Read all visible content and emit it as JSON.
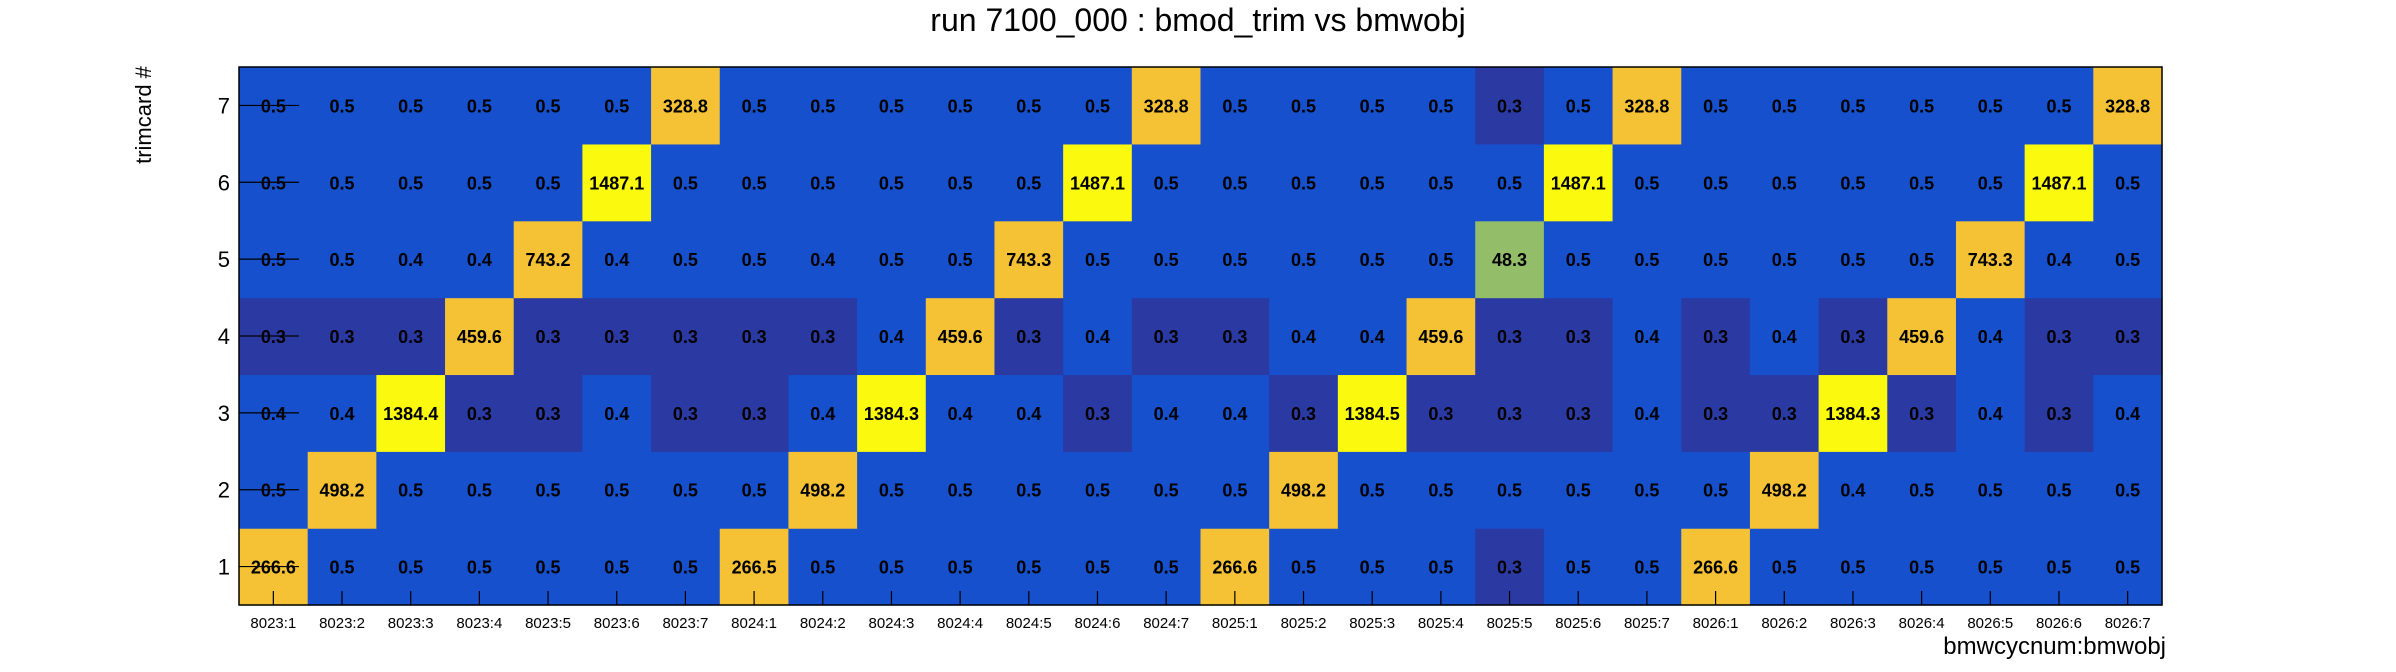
{
  "chart_data": {
    "type": "heatmap",
    "title": "run 7100_000 : bmod_trim vs bmwobj",
    "xlabel": "bmwcycnum:bmwobj",
    "ylabel": "trimcard #",
    "x_categories": [
      "8023:1",
      "8023:2",
      "8023:3",
      "8023:4",
      "8023:5",
      "8023:6",
      "8023:7",
      "8024:1",
      "8024:2",
      "8024:3",
      "8024:4",
      "8024:5",
      "8024:6",
      "8024:7",
      "8025:1",
      "8025:2",
      "8025:3",
      "8025:4",
      "8025:5",
      "8025:6",
      "8025:7",
      "8026:1",
      "8026:2",
      "8026:3",
      "8026:4",
      "8026:5",
      "8026:6",
      "8026:7"
    ],
    "y_categories": [
      "1",
      "2",
      "3",
      "4",
      "5",
      "6",
      "7"
    ],
    "values": [
      [
        "266.6",
        "0.5",
        "0.5",
        "0.5",
        "0.5",
        "0.5",
        "0.5",
        "266.5",
        "0.5",
        "0.5",
        "0.5",
        "0.5",
        "0.5",
        "0.5",
        "266.6",
        "0.5",
        "0.5",
        "0.5",
        "0.3",
        "0.5",
        "0.5",
        "266.6",
        "0.5",
        "0.5",
        "0.5",
        "0.5",
        "0.5",
        "0.5"
      ],
      [
        "0.5",
        "498.2",
        "0.5",
        "0.5",
        "0.5",
        "0.5",
        "0.5",
        "0.5",
        "498.2",
        "0.5",
        "0.5",
        "0.5",
        "0.5",
        "0.5",
        "0.5",
        "498.2",
        "0.5",
        "0.5",
        "0.5",
        "0.5",
        "0.5",
        "0.5",
        "498.2",
        "0.4",
        "0.5",
        "0.5",
        "0.5",
        "0.5"
      ],
      [
        "0.4",
        "0.4",
        "1384.4",
        "0.3",
        "0.3",
        "0.4",
        "0.3",
        "0.3",
        "0.4",
        "1384.3",
        "0.4",
        "0.4",
        "0.3",
        "0.4",
        "0.4",
        "0.3",
        "1384.5",
        "0.3",
        "0.3",
        "0.3",
        "0.4",
        "0.3",
        "0.3",
        "1384.3",
        "0.3",
        "0.4",
        "0.3",
        "0.4"
      ],
      [
        "0.3",
        "0.3",
        "0.3",
        "459.6",
        "0.3",
        "0.3",
        "0.3",
        "0.3",
        "0.3",
        "0.4",
        "459.6",
        "0.3",
        "0.4",
        "0.3",
        "0.3",
        "0.4",
        "0.4",
        "459.6",
        "0.3",
        "0.3",
        "0.4",
        "0.3",
        "0.4",
        "0.3",
        "459.6",
        "0.4",
        "0.3",
        "0.3"
      ],
      [
        "0.5",
        "0.5",
        "0.4",
        "0.4",
        "743.2",
        "0.4",
        "0.5",
        "0.5",
        "0.4",
        "0.5",
        "0.5",
        "743.3",
        "0.5",
        "0.5",
        "0.5",
        "0.5",
        "0.5",
        "0.5",
        "48.3",
        "0.5",
        "0.5",
        "0.5",
        "0.5",
        "0.5",
        "0.5",
        "743.3",
        "0.4",
        "0.5"
      ],
      [
        "0.5",
        "0.5",
        "0.5",
        "0.5",
        "0.5",
        "1487.1",
        "0.5",
        "0.5",
        "0.5",
        "0.5",
        "0.5",
        "0.5",
        "1487.1",
        "0.5",
        "0.5",
        "0.5",
        "0.5",
        "0.5",
        "0.5",
        "1487.1",
        "0.5",
        "0.5",
        "0.5",
        "0.5",
        "0.5",
        "0.5",
        "1487.1",
        "0.5"
      ],
      [
        "0.5",
        "0.5",
        "0.5",
        "0.5",
        "0.5",
        "0.5",
        "328.8",
        "0.5",
        "0.5",
        "0.5",
        "0.5",
        "0.5",
        "0.5",
        "328.8",
        "0.5",
        "0.5",
        "0.5",
        "0.5",
        "0.3",
        "0.5",
        "328.8",
        "0.5",
        "0.5",
        "0.5",
        "0.5",
        "0.5",
        "0.5",
        "328.8"
      ]
    ],
    "legend": "none",
    "grid": false,
    "colors": {
      "low": "#2b3aa3",
      "mid": "#1650cd",
      "mid_high": "#94bd6a",
      "high": "#f4c234",
      "peak": "#fbf90e",
      "text": "#000000"
    }
  }
}
